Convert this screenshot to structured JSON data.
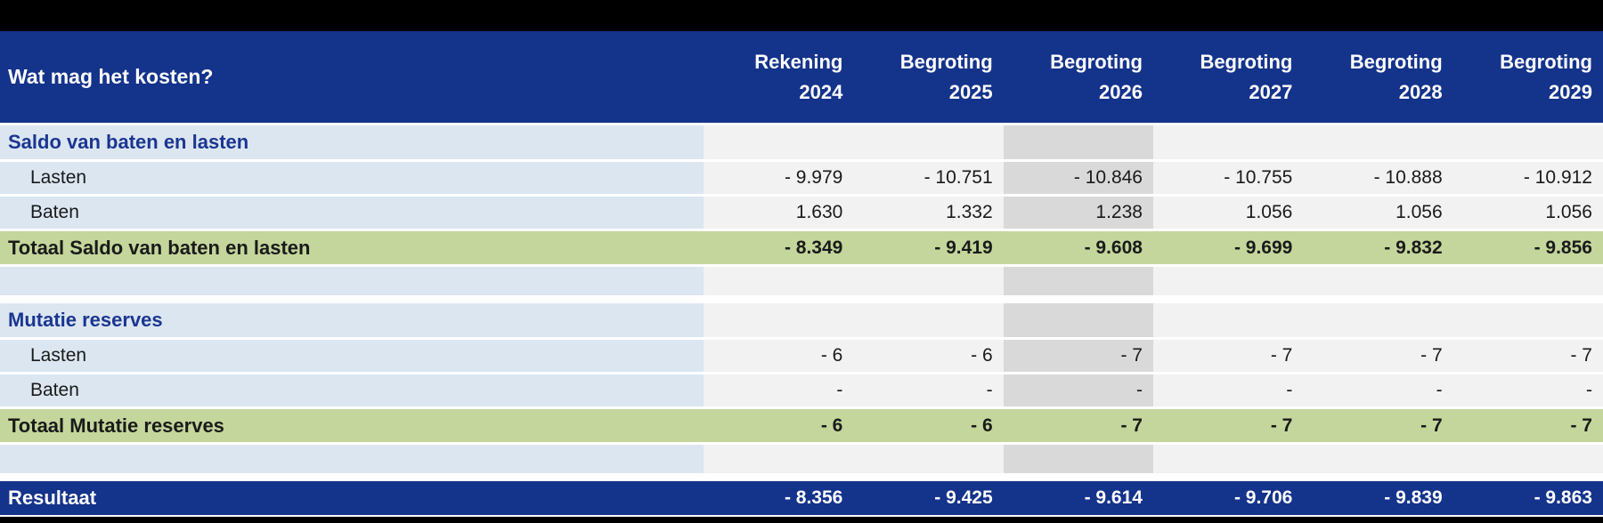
{
  "table": {
    "title": "Wat mag het kosten?",
    "columns": [
      {
        "line1": "Rekening",
        "line2": "2024",
        "highlight": false
      },
      {
        "line1": "Begroting",
        "line2": "2025",
        "highlight": false
      },
      {
        "line1": "Begroting",
        "line2": "2026",
        "highlight": true
      },
      {
        "line1": "Begroting",
        "line2": "2027",
        "highlight": false
      },
      {
        "line1": "Begroting",
        "line2": "2028",
        "highlight": false
      },
      {
        "line1": "Begroting",
        "line2": "2029",
        "highlight": false
      }
    ],
    "rows": [
      {
        "type": "section",
        "label": "Saldo van baten en lasten",
        "values": [
          "",
          "",
          "",
          "",
          "",
          ""
        ]
      },
      {
        "type": "data",
        "label": "Lasten",
        "values": [
          "- 9.979",
          "- 10.751",
          "- 10.846",
          "- 10.755",
          "- 10.888",
          "- 10.912"
        ]
      },
      {
        "type": "data",
        "label": "Baten",
        "values": [
          "1.630",
          "1.332",
          "1.238",
          "1.056",
          "1.056",
          "1.056"
        ]
      },
      {
        "type": "total",
        "label": "Totaal Saldo van baten en lasten",
        "values": [
          "- 8.349",
          "- 9.419",
          "- 9.608",
          "- 9.699",
          "- 9.832",
          "- 9.856"
        ]
      },
      {
        "type": "spacer",
        "label": "",
        "values": [
          "",
          "",
          "",
          "",
          "",
          ""
        ]
      },
      {
        "type": "section",
        "label": "Mutatie reserves",
        "values": [
          "",
          "",
          "",
          "",
          "",
          ""
        ],
        "gap_before": true
      },
      {
        "type": "data",
        "label": "Lasten",
        "values": [
          "- 6",
          "- 6",
          "- 7",
          "- 7",
          "- 7",
          "- 7"
        ]
      },
      {
        "type": "data",
        "label": "Baten",
        "values": [
          "-",
          "-",
          "-",
          "-",
          "-",
          "-"
        ]
      },
      {
        "type": "total",
        "label": "Totaal Mutatie reserves",
        "values": [
          "- 6",
          "- 6",
          "- 7",
          "- 7",
          "- 7",
          "- 7"
        ]
      },
      {
        "type": "spacer",
        "label": "",
        "values": [
          "",
          "",
          "",
          "",
          "",
          ""
        ]
      },
      {
        "type": "result",
        "label": "Resultaat",
        "values": [
          "- 8.356",
          "- 9.425",
          "- 9.614",
          "- 9.706",
          "- 9.839",
          "- 9.863"
        ],
        "gap_before": true
      }
    ],
    "colors": {
      "header_bg": "#14338B",
      "section_text": "#1A3691",
      "label_bg": "#DCE6F1",
      "cell_bg": "#F2F2F2",
      "highlight_bg": "#D9D9D9",
      "total_bg": "#C4D69B"
    }
  }
}
